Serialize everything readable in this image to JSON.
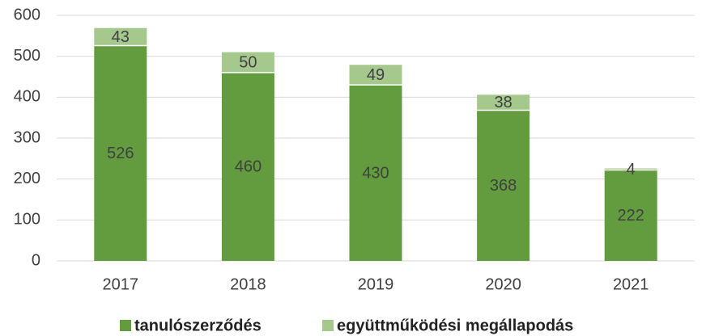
{
  "chart_data": {
    "type": "stacked_bar",
    "categories": [
      "2017",
      "2018",
      "2019",
      "2020",
      "2021"
    ],
    "series": [
      {
        "name": "tanulószerződés",
        "color": "#629c3f",
        "values": [
          526,
          460,
          430,
          368,
          222
        ]
      },
      {
        "name": "együttműködési megállapodás",
        "color": "#a5c98d",
        "values": [
          43,
          50,
          49,
          38,
          4
        ]
      }
    ],
    "ylim": [
      0,
      600
    ],
    "yticks": [
      0,
      100,
      200,
      300,
      400,
      500,
      600
    ],
    "grid": true,
    "legend": "bottom"
  }
}
